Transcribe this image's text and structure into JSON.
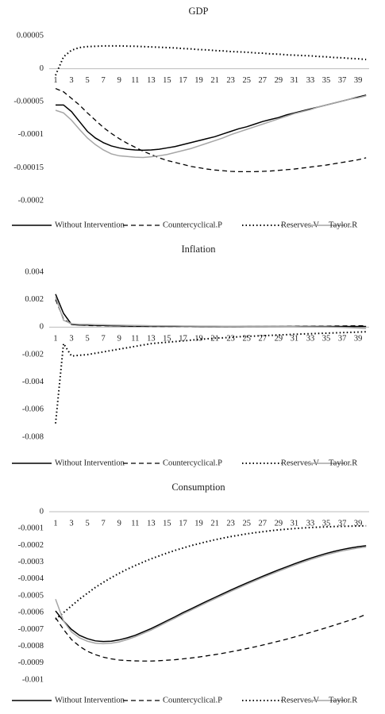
{
  "chart_data": [
    {
      "type": "line",
      "title": "GDP",
      "legend": "bottom",
      "categories": [
        1,
        null,
        3,
        null,
        5,
        null,
        7,
        null,
        9,
        null,
        11,
        null,
        13,
        null,
        15,
        null,
        17,
        null,
        19,
        null,
        21,
        null,
        23,
        null,
        25,
        null,
        27,
        null,
        29,
        null,
        31,
        null,
        33,
        null,
        35,
        null,
        37,
        null,
        39,
        null
      ],
      "ylim": [
        -0.0002,
        5e-05
      ],
      "yticks": [
        5e-05,
        0,
        -5e-05,
        -0.0001,
        -0.00015,
        -0.0002
      ],
      "series": [
        {
          "name": "Without Intervention",
          "color": "#000000",
          "dash": "solid",
          "values": [
            -5.5e-05,
            -5.5e-05,
            -6.5e-05,
            -8e-05,
            -9.5e-05,
            -0.000105,
            -0.000112,
            -0.000117,
            -0.00012,
            -0.000122,
            -0.000123,
            -0.0001235,
            -0.000123,
            -0.000122,
            -0.00012,
            -0.000118,
            -0.000115,
            -0.000112,
            -0.000109,
            -0.000106,
            -0.000103,
            -9.9e-05,
            -9.5e-05,
            -9.1e-05,
            -8.8e-05,
            -8.4e-05,
            -8e-05,
            -7.7e-05,
            -7.4e-05,
            -7e-05,
            -6.7e-05,
            -6.4e-05,
            -6.1e-05,
            -5.8e-05,
            -5.5e-05,
            -5.2e-05,
            -4.9e-05,
            -4.6e-05,
            -4.3e-05,
            -4e-05
          ]
        },
        {
          "name": "Countercyclical.P",
          "color": "#000000",
          "dash": "dashed",
          "values": [
            -3e-05,
            -3.5e-05,
            -4.5e-05,
            -5.5e-05,
            -6.7e-05,
            -7.8e-05,
            -8.9e-05,
            -9.8e-05,
            -0.000106,
            -0.000113,
            -0.000119,
            -0.000125,
            -0.00013,
            -0.000135,
            -0.000139,
            -0.000142,
            -0.000145,
            -0.000148,
            -0.00015,
            -0.000152,
            -0.0001535,
            -0.0001545,
            -0.0001555,
            -0.000156,
            -0.000156,
            -0.000156,
            -0.0001555,
            -0.000155,
            -0.000154,
            -0.000153,
            -0.000152,
            -0.0001505,
            -0.000149,
            -0.0001475,
            -0.000146,
            -0.000144,
            -0.000142,
            -0.00014,
            -0.000138,
            -0.000135
          ]
        },
        {
          "name": "Reserves.V",
          "color": "#000000",
          "dash": "dotted",
          "values": [
            -1e-05,
            1.8e-05,
            2.8e-05,
            3.2e-05,
            3.35e-05,
            3.4e-05,
            3.45e-05,
            3.45e-05,
            3.45e-05,
            3.42e-05,
            3.4e-05,
            3.35e-05,
            3.3e-05,
            3.25e-05,
            3.2e-05,
            3.15e-05,
            3.05e-05,
            3e-05,
            2.9e-05,
            2.85e-05,
            2.75e-05,
            2.7e-05,
            2.6e-05,
            2.55e-05,
            2.5e-05,
            2.4e-05,
            2.35e-05,
            2.25e-05,
            2.2e-05,
            2.1e-05,
            2.05e-05,
            2e-05,
            1.95e-05,
            1.85e-05,
            1.8e-05,
            1.7e-05,
            1.65e-05,
            1.55e-05,
            1.5e-05,
            1.4e-05
          ]
        },
        {
          "name": "Taylor.R",
          "color": "#a6a6a6",
          "dash": "solid",
          "values": [
            -6.3e-05,
            -6.7e-05,
            -7.8e-05,
            -9.2e-05,
            -0.000105,
            -0.000115,
            -0.000123,
            -0.000129,
            -0.000132,
            -0.000133,
            -0.000134,
            -0.0001345,
            -0.0001335,
            -0.000132,
            -0.00013,
            -0.000127,
            -0.000124,
            -0.000121,
            -0.000117,
            -0.000113,
            -0.000109,
            -0.000105,
            -0.0001,
            -9.6e-05,
            -9.2e-05,
            -8.8e-05,
            -8.4e-05,
            -8e-05,
            -7.6e-05,
            -7.2e-05,
            -6.8e-05,
            -6.5e-05,
            -6.2e-05,
            -5.8e-05,
            -5.5e-05,
            -5.2e-05,
            -4.9e-05,
            -4.6e-05,
            -4.4e-05,
            -4.1e-05
          ]
        }
      ]
    },
    {
      "type": "line",
      "title": "Inflation",
      "legend": "bottom",
      "categories": [
        1,
        null,
        3,
        null,
        5,
        null,
        7,
        null,
        9,
        null,
        11,
        null,
        13,
        null,
        15,
        null,
        17,
        null,
        19,
        null,
        21,
        null,
        23,
        null,
        25,
        null,
        27,
        null,
        29,
        null,
        31,
        null,
        33,
        null,
        35,
        null,
        37,
        null,
        39,
        null
      ],
      "ylim": [
        -0.008,
        0.004
      ],
      "yticks": [
        0.004,
        0.002,
        0,
        -0.002,
        -0.004,
        -0.006,
        -0.008
      ],
      "series": [
        {
          "name": "Without Intervention",
          "color": "#000000",
          "dash": "solid",
          "values": [
            0.0024,
            0.001,
            0.0002,
            0.00015,
            0.00015,
            0.00013,
            0.00012,
            0.0001,
            9e-05,
            8e-05,
            8e-05,
            7e-05,
            7e-05,
            7e-05,
            6e-05,
            6e-05,
            6e-05,
            6e-05,
            5e-05,
            5e-05,
            5e-05,
            5e-05,
            5e-05,
            5e-05,
            5e-05,
            5e-05,
            5e-05,
            5e-05,
            5e-05,
            5e-05,
            5e-05,
            5e-05,
            5e-05,
            5e-05,
            5e-05,
            5e-05,
            5e-05,
            5e-05,
            5e-05,
            5e-05
          ]
        },
        {
          "name": "Countercyclical.P",
          "color": "#000000",
          "dash": "dashed",
          "values": [
            0.002,
            0.0006,
            0.0002,
            0.00015,
            0.00012,
            0.0001,
            0.0001,
            9e-05,
            8e-05,
            7e-05,
            6e-05,
            6e-05,
            5e-05,
            5e-05,
            5e-05,
            5e-05,
            5e-05,
            5e-05,
            5e-05,
            5e-05,
            5e-05,
            5e-05,
            5e-05,
            5e-05,
            5e-05,
            5e-05,
            5e-05,
            5e-05,
            5e-05,
            5e-05,
            6e-05,
            6e-05,
            6e-05,
            7e-05,
            7e-05,
            8e-05,
            8e-05,
            9e-05,
            0.0001,
            0.0001
          ]
        },
        {
          "name": "Reserves.V",
          "color": "#000000",
          "dash": "dotted",
          "values": [
            -0.007,
            -0.0012,
            -0.0021,
            -0.00205,
            -0.002,
            -0.0019,
            -0.0018,
            -0.0017,
            -0.0016,
            -0.0015,
            -0.0014,
            -0.0013,
            -0.0012,
            -0.00115,
            -0.0011,
            -0.00105,
            -0.001,
            -0.00095,
            -0.0009,
            -0.00085,
            -0.0008,
            -0.00078,
            -0.00075,
            -0.0007,
            -0.00068,
            -0.00065,
            -0.00062,
            -0.0006,
            -0.00057,
            -0.00055,
            -0.00052,
            -0.0005,
            -0.00048,
            -0.00046,
            -0.00044,
            -0.00042,
            -0.0004,
            -0.00038,
            -0.00036,
            -0.00034
          ]
        },
        {
          "name": "Taylor.R",
          "color": "#a6a6a6",
          "dash": "solid",
          "values": [
            0.0022,
            0.0005,
            0.00025,
            0.0002,
            0.0002,
            0.00018,
            0.00017,
            0.00015,
            0.00014,
            0.00013,
            0.00012,
            0.00011,
            0.0001,
            0.0001,
            9e-05,
            9e-05,
            8e-05,
            8e-05,
            7e-05,
            7e-05,
            7e-05,
            6e-05,
            6e-05,
            6e-05,
            5e-05,
            5e-05,
            5e-05,
            4e-05,
            4e-05,
            3e-05,
            3e-05,
            2e-05,
            2e-05,
            1e-05,
            1e-05,
            0,
            -2e-05,
            -4e-05,
            -7e-05,
            -0.0001
          ]
        }
      ]
    },
    {
      "type": "line",
      "title": "Consumption",
      "legend": "bottom",
      "categories": [
        1,
        null,
        3,
        null,
        5,
        null,
        7,
        null,
        9,
        null,
        11,
        null,
        13,
        null,
        15,
        null,
        17,
        null,
        19,
        null,
        21,
        null,
        23,
        null,
        25,
        null,
        27,
        null,
        29,
        null,
        31,
        null,
        33,
        null,
        35,
        null,
        37,
        null,
        39,
        null
      ],
      "ylim": [
        -0.001,
        0
      ],
      "yticks": [
        0,
        -0.0001,
        -0.0002,
        -0.0003,
        -0.0004,
        -0.0005,
        -0.0006,
        -0.0007,
        -0.0008,
        -0.0009,
        -0.001
      ],
      "series": [
        {
          "name": "Without Intervention",
          "color": "#000000",
          "dash": "solid",
          "values": [
            -0.00059,
            -0.00065,
            -0.0007,
            -0.000735,
            -0.000755,
            -0.000768,
            -0.000772,
            -0.00077,
            -0.000762,
            -0.00075,
            -0.000735,
            -0.000715,
            -0.000695,
            -0.000672,
            -0.000648,
            -0.000625,
            -0.0006,
            -0.000578,
            -0.000555,
            -0.000532,
            -0.00051,
            -0.000488,
            -0.000466,
            -0.000445,
            -0.000424,
            -0.000404,
            -0.000384,
            -0.000365,
            -0.000346,
            -0.000328,
            -0.00031,
            -0.000293,
            -0.000277,
            -0.000262,
            -0.000248,
            -0.000236,
            -0.000225,
            -0.000216,
            -0.000208,
            -0.000202
          ]
        },
        {
          "name": "Countercyclical.P",
          "color": "#000000",
          "dash": "dashed",
          "values": [
            -0.00063,
            -0.0007,
            -0.00076,
            -0.0008,
            -0.00083,
            -0.00085,
            -0.000865,
            -0.000875,
            -0.000882,
            -0.000885,
            -0.000887,
            -0.000888,
            -0.000888,
            -0.000886,
            -0.000883,
            -0.00088,
            -0.000875,
            -0.00087,
            -0.000864,
            -0.000857,
            -0.00085,
            -0.000842,
            -0.000833,
            -0.000824,
            -0.000814,
            -0.000804,
            -0.000793,
            -0.000782,
            -0.00077,
            -0.000758,
            -0.000745,
            -0.000732,
            -0.000718,
            -0.000704,
            -0.00069,
            -0.000675,
            -0.00066,
            -0.000645,
            -0.00063,
            -0.00061
          ]
        },
        {
          "name": "Reserves.V",
          "color": "#000000",
          "dash": "dotted",
          "values": [
            -0.00064,
            -0.0006,
            -0.00056,
            -0.00052,
            -0.000485,
            -0.00045,
            -0.00042,
            -0.000392,
            -0.000366,
            -0.000342,
            -0.00032,
            -0.0003,
            -0.00028,
            -0.000263,
            -0.000246,
            -0.00023,
            -0.000216,
            -0.000202,
            -0.00019,
            -0.000178,
            -0.000167,
            -0.000157,
            -0.000148,
            -0.00014,
            -0.000132,
            -0.000125,
            -0.000119,
            -0.000113,
            -0.000108,
            -0.000104,
            -0.0001,
            -9.7e-05,
            -9.4e-05,
            -9.2e-05,
            -9e-05,
            -8.8e-05,
            -8.7e-05,
            -8.6e-05,
            -8.5e-05,
            -8.4e-05
          ]
        },
        {
          "name": "Taylor.R",
          "color": "#a6a6a6",
          "dash": "solid",
          "values": [
            -0.00052,
            -0.00065,
            -0.000715,
            -0.00075,
            -0.00077,
            -0.000782,
            -0.000785,
            -0.000782,
            -0.000774,
            -0.00076,
            -0.000744,
            -0.000724,
            -0.000704,
            -0.00068,
            -0.000656,
            -0.000633,
            -0.000608,
            -0.000586,
            -0.000563,
            -0.00054,
            -0.000518,
            -0.000496,
            -0.000474,
            -0.000453,
            -0.000432,
            -0.000412,
            -0.000392,
            -0.000373,
            -0.000354,
            -0.000336,
            -0.000318,
            -0.000301,
            -0.000285,
            -0.00027,
            -0.000256,
            -0.000244,
            -0.000233,
            -0.000224,
            -0.000216,
            -0.00021
          ]
        }
      ]
    }
  ]
}
